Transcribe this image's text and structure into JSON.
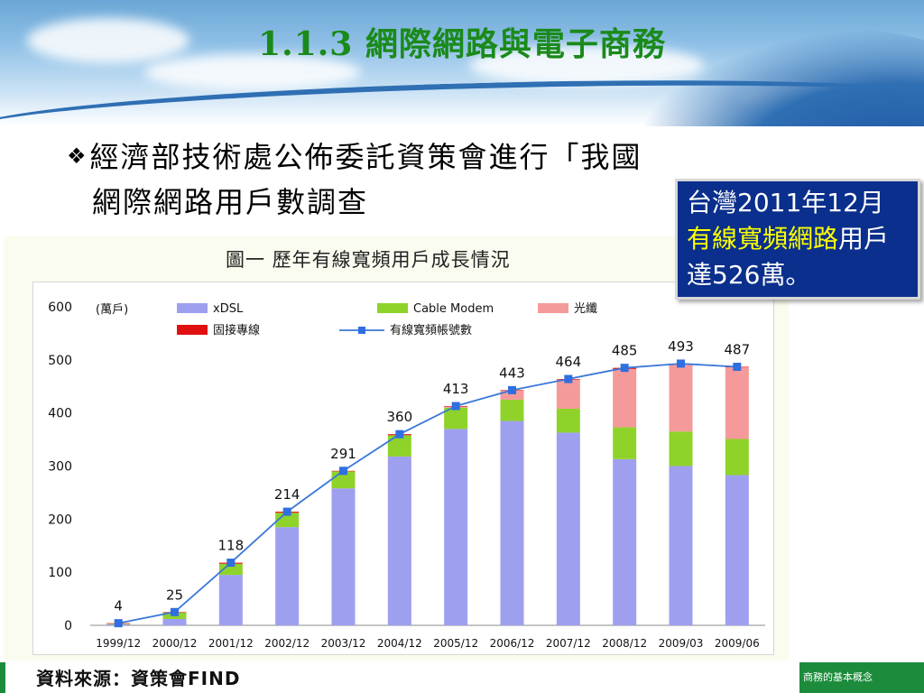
{
  "slide": {
    "title": "1.1.3 網際網路與電子商務",
    "bullet_mark": "❖",
    "bullet_line1": "經濟部技術處公佈委託資策會進行「我國",
    "bullet_line2": "網際網路用戶數調查",
    "callout": {
      "part1": "台灣2011年12月",
      "highlight": "有線寬頻網路",
      "part2": "用戶達526萬。"
    },
    "source": "資料來源：資策會FIND",
    "footer": "商務的基本概念"
  },
  "colors": {
    "title_green": "#1a8a1a",
    "callout_bg": "#0a2f8c",
    "callout_highlight": "#ffff00",
    "xdsl": "#9f9ff0",
    "cable": "#8fd32a",
    "fiber": "#f59a9a",
    "leased": "#e01010",
    "line": "#3a78d8",
    "marker": "#2f6fe0"
  },
  "chart_data": {
    "type": "bar",
    "title": "圖一  歷年有線寬頻用戶成長情況",
    "unit_label": "(萬戶)",
    "ylim": [
      0,
      600
    ],
    "yticks": [
      0,
      100,
      200,
      300,
      400,
      500,
      600
    ],
    "categories": [
      "1999/12",
      "2000/12",
      "2001/12",
      "2002/12",
      "2003/12",
      "2004/12",
      "2005/12",
      "2006/12",
      "2007/12",
      "2008/12",
      "2009/03",
      "2009/06"
    ],
    "stack_series": [
      {
        "name": "xDSL",
        "color": "#9f9ff0",
        "values": [
          2,
          12,
          95,
          185,
          258,
          318,
          370,
          385,
          363,
          313,
          300,
          283
        ]
      },
      {
        "name": "Cable Modem",
        "color": "#8fd32a",
        "values": [
          1,
          12,
          21,
          27,
          32,
          40,
          40,
          40,
          45,
          60,
          65,
          68
        ]
      },
      {
        "name": "光纖",
        "color": "#f59a9a",
        "values": [
          0,
          0,
          0,
          0,
          0,
          0,
          2,
          17,
          55,
          110,
          128,
          135
        ]
      },
      {
        "name": "固接專線",
        "color": "#e01010",
        "values": [
          1,
          1,
          2,
          2,
          1,
          2,
          1,
          1,
          1,
          2,
          0,
          1
        ]
      }
    ],
    "line_series": {
      "name": "有線寬頻帳號數",
      "values": [
        4,
        25,
        118,
        214,
        291,
        360,
        413,
        443,
        464,
        485,
        493,
        487
      ]
    },
    "legend": [
      {
        "name": "xDSL",
        "kind": "box",
        "color": "#9f9ff0"
      },
      {
        "name": "Cable Modem",
        "kind": "box",
        "color": "#8fd32a"
      },
      {
        "name": "光纖",
        "kind": "box",
        "color": "#f59a9a"
      },
      {
        "name": "固接專線",
        "kind": "box",
        "color": "#e01010"
      },
      {
        "name": "有線寬頻帳號數",
        "kind": "line",
        "color": "#3a78d8"
      }
    ],
    "legend_position": "top",
    "grid": false
  }
}
